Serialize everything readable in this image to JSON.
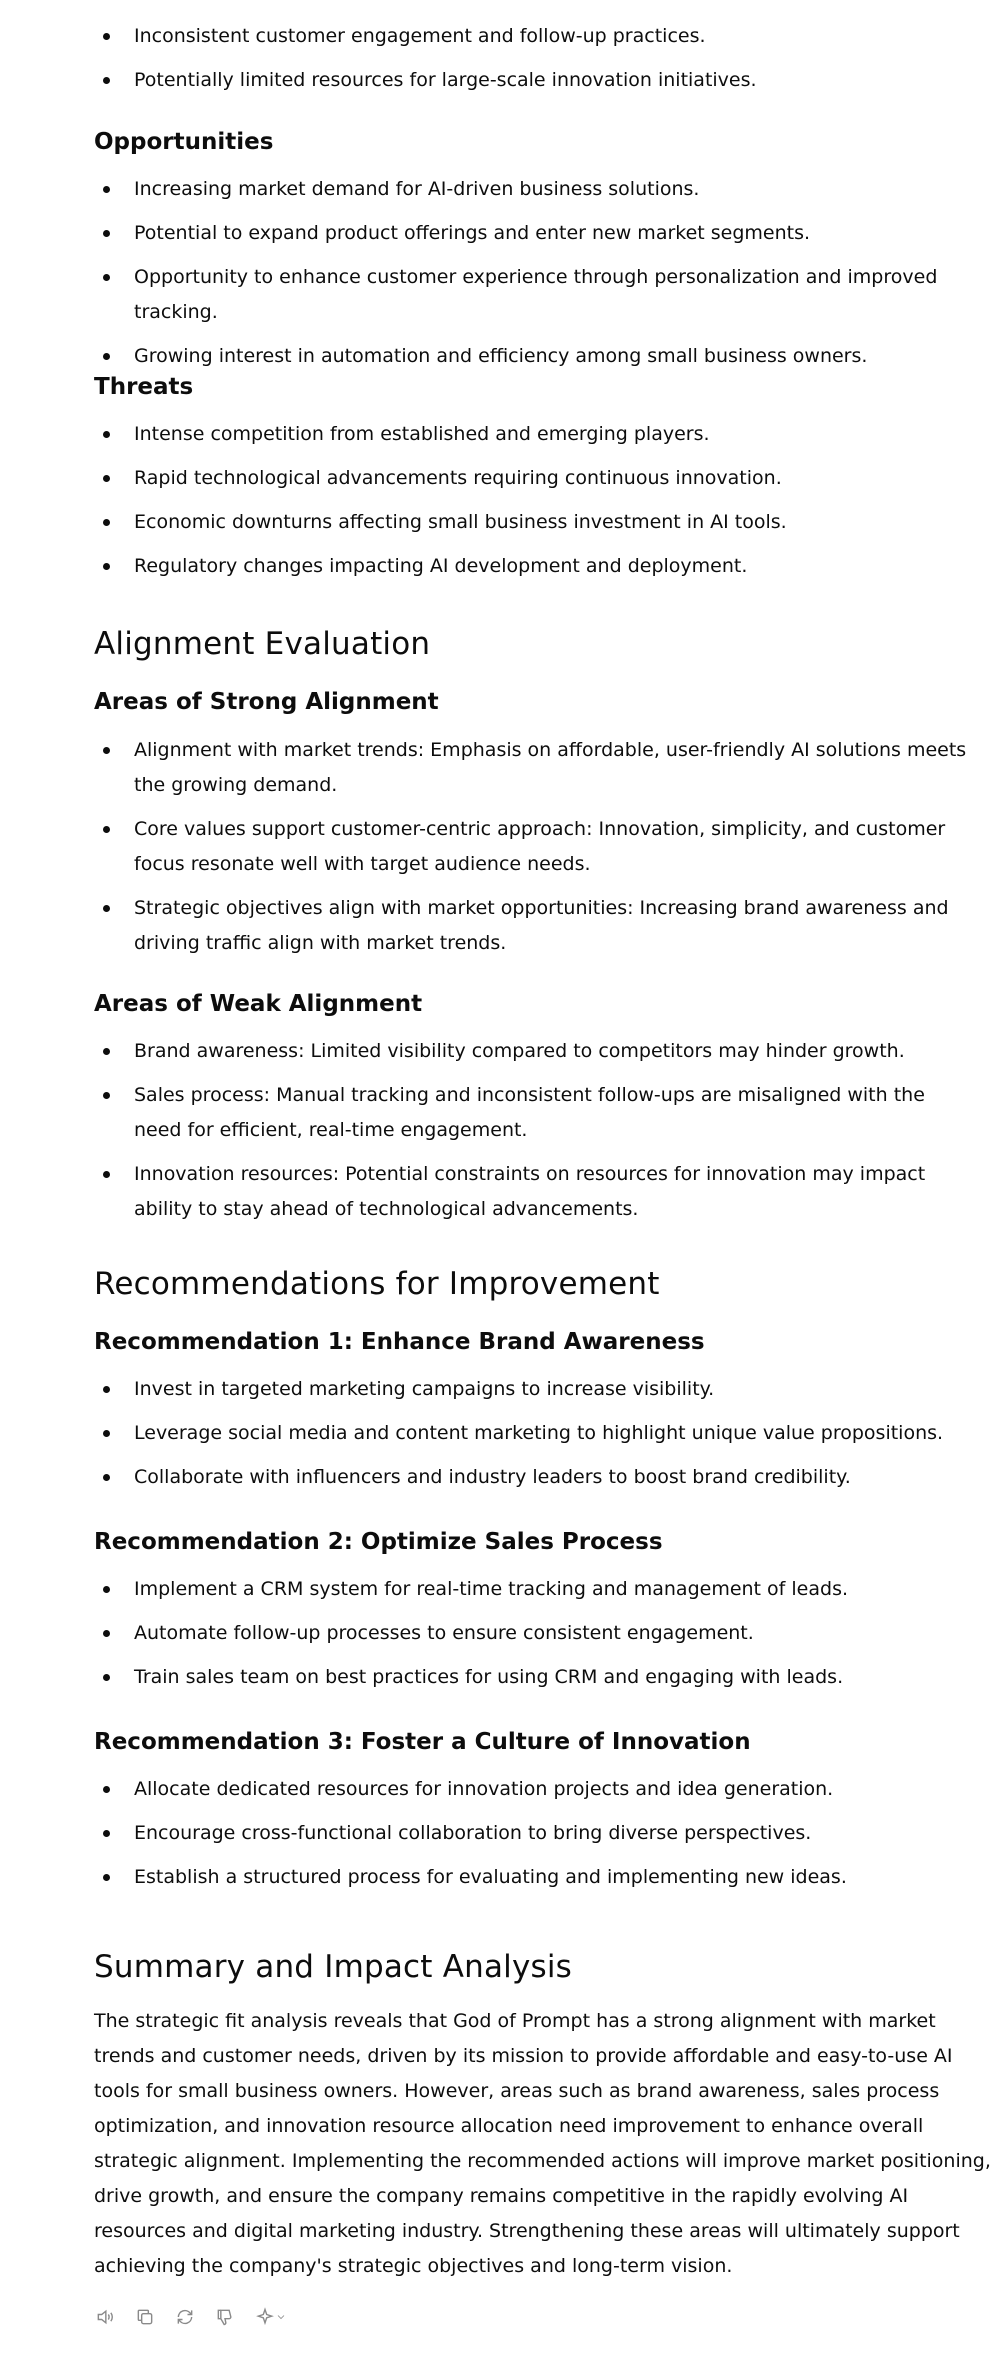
{
  "weaknesses_tail": [
    "Inconsistent customer engagement and follow-up practices.",
    "Potentially limited resources for large-scale innovation initiatives."
  ],
  "opportunities": {
    "heading": "Opportunities",
    "items": [
      "Increasing market demand for AI-driven business solutions.",
      "Potential to expand product offerings and enter new market segments.",
      "Opportunity to enhance customer experience through personalization and improved tracking.",
      "Growing interest in automation and efficiency among small business owners."
    ]
  },
  "threats": {
    "heading": "Threats",
    "items": [
      "Intense competition from established and emerging players.",
      "Rapid technological advancements requiring continuous innovation.",
      "Economic downturns affecting small business investment in AI tools.",
      "Regulatory changes impacting AI development and deployment."
    ]
  },
  "alignment": {
    "heading": "Alignment Evaluation",
    "strong": {
      "heading": "Areas of Strong Alignment",
      "items": [
        "Alignment with market trends: Emphasis on affordable, user-friendly AI solutions meets the growing demand.",
        "Core values support customer-centric approach: Innovation, simplicity, and customer focus resonate well with target audience needs.",
        "Strategic objectives align with market opportunities: Increasing brand awareness and driving traffic align with market trends."
      ]
    },
    "weak": {
      "heading": "Areas of Weak Alignment",
      "items": [
        "Brand awareness: Limited visibility compared to competitors may hinder growth.",
        "Sales process: Manual tracking and inconsistent follow-ups are misaligned with the need for efficient, real-time engagement.",
        "Innovation resources: Potential constraints on resources for innovation may impact ability to stay ahead of technological advancements."
      ]
    }
  },
  "recommendations": {
    "heading": "Recommendations for Improvement",
    "r1": {
      "heading": "Recommendation 1: Enhance Brand Awareness",
      "items": [
        "Invest in targeted marketing campaigns to increase visibility.",
        "Leverage social media and content marketing to highlight unique value propositions.",
        "Collaborate with influencers and industry leaders to boost brand credibility."
      ]
    },
    "r2": {
      "heading": "Recommendation 2: Optimize Sales Process",
      "items": [
        "Implement a CRM system for real-time tracking and management of leads.",
        "Automate follow-up processes to ensure consistent engagement.",
        "Train sales team on best practices for using CRM and engaging with leads."
      ]
    },
    "r3": {
      "heading": "Recommendation 3: Foster a Culture of Innovation",
      "items": [
        "Allocate dedicated resources for innovation projects and idea generation.",
        "Encourage cross-functional collaboration to bring diverse perspectives.",
        "Establish a structured process for evaluating and implementing new ideas."
      ]
    }
  },
  "summary": {
    "heading": "Summary and Impact Analysis",
    "text": "The strategic fit analysis reveals that God of Prompt has a strong alignment with market trends and customer needs, driven by its mission to provide affordable and easy-to-use AI tools for small business owners. However, areas such as brand awareness, sales process optimization, and innovation resource allocation need improvement to enhance overall strategic alignment. Implementing the recommended actions will improve market positioning, drive growth, and ensure the company remains competitive in the rapidly evolving AI resources and digital marketing industry. Strengthening these areas will ultimately support achieving the company's strategic objectives and long-term vision."
  },
  "actions": {
    "icons": [
      "read-aloud-icon",
      "copy-icon",
      "regenerate-icon",
      "thumbs-down-icon",
      "sparkle-model-icon"
    ],
    "icon_color": "#8a8a8a"
  }
}
